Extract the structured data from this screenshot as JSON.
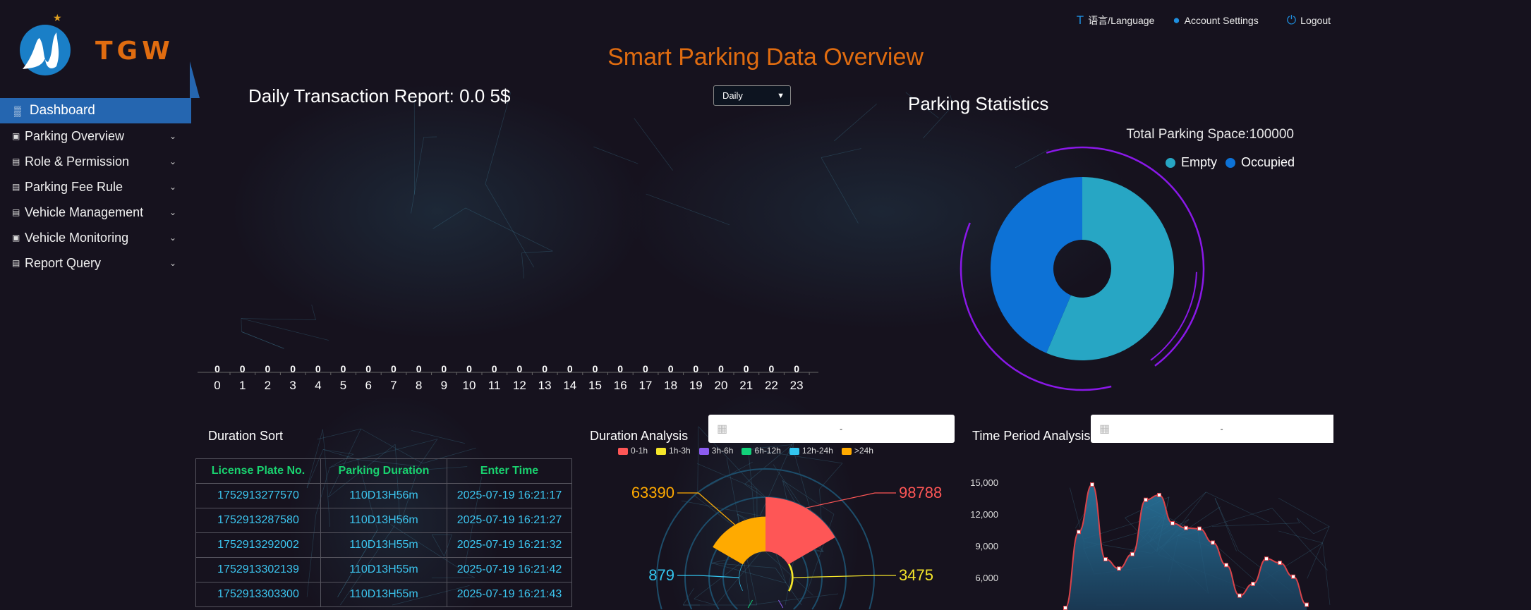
{
  "topbar": {
    "language": "语言/Language",
    "account": "Account Settings",
    "logout": "Logout"
  },
  "brand": {
    "logo_text": "TGW"
  },
  "sidebar": {
    "items": [
      {
        "label": "Dashboard",
        "icon": "bar-chart-icon",
        "active": true
      },
      {
        "label": "Parking Overview",
        "icon": "parking-icon"
      },
      {
        "label": "Role & Permission",
        "icon": "id-card-icon"
      },
      {
        "label": "Parking Fee Rule",
        "icon": "fee-rule-icon"
      },
      {
        "label": "Vehicle Management",
        "icon": "vehicle-doc-icon"
      },
      {
        "label": "Vehicle Monitoring",
        "icon": "monitor-icon"
      },
      {
        "label": "Report Query",
        "icon": "report-search-icon"
      }
    ]
  },
  "page_title": "Smart Parking Data Overview",
  "daily": {
    "title": "Daily Transaction Report: 0.0 5$",
    "period_select": "Daily"
  },
  "parking_stats": {
    "title": "Parking Statistics",
    "total": "Total Parking Space:100000",
    "legend": [
      "Empty",
      "Occupied"
    ]
  },
  "duration_sort": {
    "title": "Duration Sort",
    "columns": [
      "License Plate No.",
      "Parking Duration",
      "Enter Time"
    ],
    "rows": [
      [
        "1752913277570",
        "110D13H56m",
        "2025-07-19 16:21:17"
      ],
      [
        "1752913287580",
        "110D13H56m",
        "2025-07-19 16:21:27"
      ],
      [
        "1752913292002",
        "110D13H55m",
        "2025-07-19 16:21:32"
      ],
      [
        "1752913302139",
        "110D13H55m",
        "2025-07-19 16:21:42"
      ],
      [
        "1752913303300",
        "110D13H55m",
        "2025-07-19 16:21:43"
      ]
    ]
  },
  "duration_analysis": {
    "title": "Duration Analysis",
    "date_separator": "-"
  },
  "time_period": {
    "title": "Time Period Analysis",
    "date_separator": "-"
  },
  "chart_data": [
    {
      "type": "line",
      "categories": [
        "0",
        "1",
        "2",
        "3",
        "4",
        "5",
        "6",
        "7",
        "8",
        "9",
        "10",
        "11",
        "12",
        "13",
        "14",
        "15",
        "16",
        "17",
        "18",
        "19",
        "20",
        "21",
        "22",
        "23"
      ],
      "values": [
        0,
        0,
        0,
        0,
        0,
        0,
        0,
        0,
        0,
        0,
        0,
        0,
        0,
        0,
        0,
        0,
        0,
        0,
        0,
        0,
        0,
        0,
        0,
        0
      ],
      "data_labels": true
    },
    {
      "type": "pie",
      "donut": true,
      "categories": [
        "Empty",
        "Occupied"
      ],
      "values": [
        56.4,
        43.6
      ],
      "unit": "percent",
      "colors": [
        "#27a6c4",
        "#0d72d6"
      ],
      "legend": "top-right"
    },
    {
      "type": "pie",
      "rose": true,
      "categories": [
        "0-1h",
        "1h-3h",
        "3h-6h",
        "6h-12h",
        "12h-24h",
        ">24h"
      ],
      "values": [
        98788,
        3475,
        0,
        0,
        879,
        63390
      ],
      "colors": [
        "#fe5656",
        "#f5e62a",
        "#8c5cf0",
        "#12d27a",
        "#33c6f0",
        "#ffaa00"
      ],
      "legend": "top"
    },
    {
      "type": "area",
      "smooth": true,
      "values": [
        3200,
        10380,
        14860,
        7800,
        6920,
        8280,
        13420,
        13870,
        11200,
        10750,
        10690,
        9370,
        7250,
        4360,
        5470,
        7850,
        7460,
        6150,
        3500
      ],
      "yticks": [
        "6,000",
        "9,000",
        "12,000",
        "15,000"
      ],
      "colors": {
        "line": "#d9434a",
        "fill": "#2a7ea8"
      }
    }
  ]
}
